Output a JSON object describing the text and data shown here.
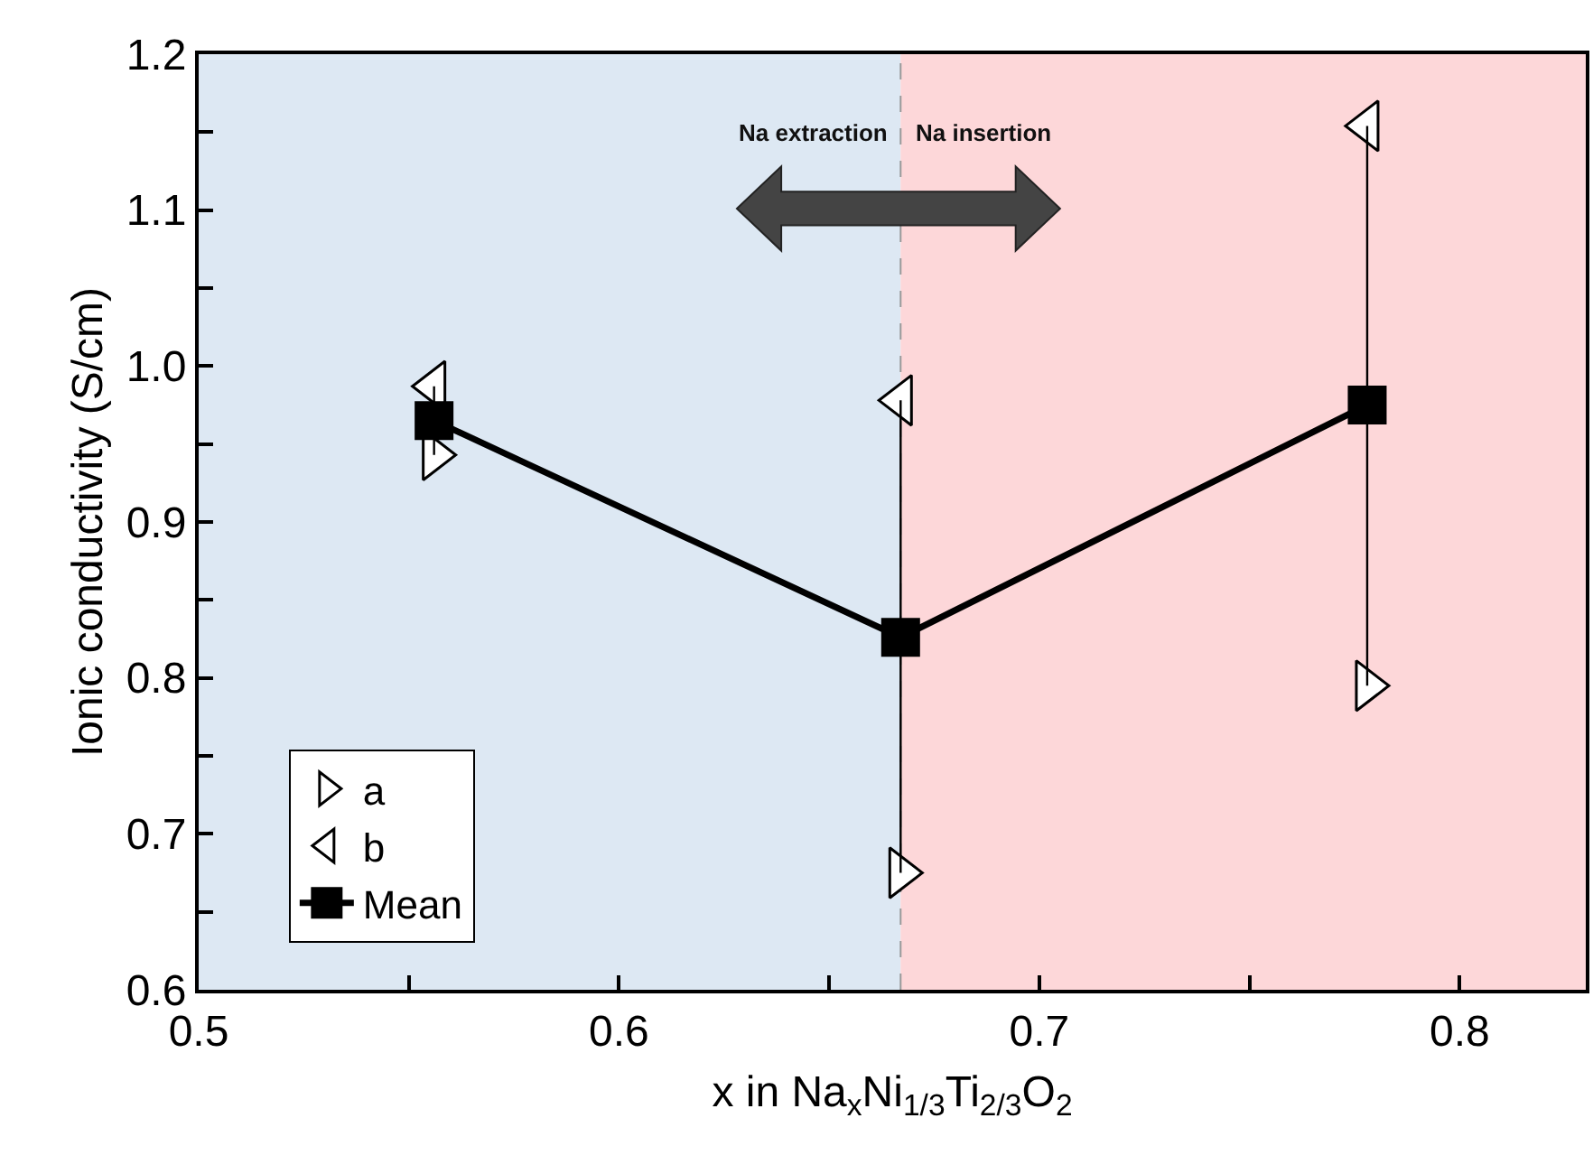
{
  "chart_data": {
    "type": "scatter",
    "xlabel": "x in Na$_{x}$Ni$_{1/3}$Ti$_{2/3}$O$_{2}$",
    "ylabel": "Ionic conductivity (S/cm)",
    "x": [
      0.556,
      0.667,
      0.778
    ],
    "series": [
      {
        "name": "a",
        "color": "#000000",
        "marker": "triangle-right",
        "values": [
          0.943,
          0.675,
          0.795
        ]
      },
      {
        "name": "b",
        "color": "#000000",
        "marker": "triangle-left",
        "values": [
          0.987,
          0.978,
          1.154
        ]
      },
      {
        "name": "Mean",
        "color": "#000000",
        "type": "line",
        "marker": "square",
        "values": [
          0.965,
          0.826,
          0.975
        ],
        "errors": [
          [
            0.943,
            0.987
          ],
          [
            0.675,
            0.978
          ],
          [
            0.795,
            1.154
          ]
        ]
      }
    ],
    "xlim": [
      0.5,
      0.83
    ],
    "xticks": [
      0.5,
      {
        "value": 0.55,
        "label": null
      },
      0.6,
      {
        "value": 0.65,
        "label": null
      },
      0.7,
      {
        "value": 0.75,
        "label": null
      },
      0.8
    ],
    "ylim": [
      0.6,
      1.2
    ],
    "yticks": [
      0.6,
      {
        "value": 0.65,
        "label": null
      },
      0.7,
      {
        "value": 0.75,
        "label": null
      },
      0.8,
      {
        "value": 0.85,
        "label": null
      },
      0.9,
      {
        "value": 0.95,
        "label": null
      },
      {
        "value": 1.0,
        "label": "1.0"
      },
      {
        "value": 1.05,
        "label": null
      },
      1.1,
      {
        "value": 1.15,
        "label": null
      },
      1.2
    ],
    "bands": [
      {
        "axis": "x",
        "from": 0.5,
        "to": 0.667,
        "color": "#dde8f3"
      },
      {
        "axis": "x",
        "from": 0.667,
        "to": 0.83,
        "color": "#fdd7d9"
      }
    ],
    "ref_lines": [
      {
        "axis": "x",
        "value": 0.667,
        "color": "#999999",
        "line_style": "dashed"
      }
    ],
    "annotations": [
      "Na extraction",
      "Na insertion"
    ],
    "grid": false,
    "legend": "bottom left"
  }
}
